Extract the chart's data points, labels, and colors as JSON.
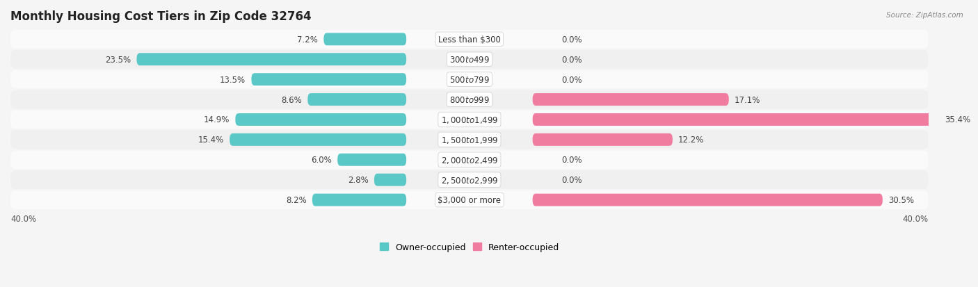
{
  "title": "Monthly Housing Cost Tiers in Zip Code 32764",
  "source": "Source: ZipAtlas.com",
  "categories": [
    "Less than $300",
    "$300 to $499",
    "$500 to $799",
    "$800 to $999",
    "$1,000 to $1,499",
    "$1,500 to $1,999",
    "$2,000 to $2,499",
    "$2,500 to $2,999",
    "$3,000 or more"
  ],
  "owner_values": [
    7.2,
    23.5,
    13.5,
    8.6,
    14.9,
    15.4,
    6.0,
    2.8,
    8.2
  ],
  "renter_values": [
    0.0,
    0.0,
    0.0,
    17.1,
    35.4,
    12.2,
    0.0,
    0.0,
    30.5
  ],
  "owner_color": "#5bc8c8",
  "renter_color": "#f07ca0",
  "axis_max": 40.0,
  "row_bg_odd": "#f0f0f0",
  "row_bg_even": "#fafafa",
  "background_color": "#f5f5f5",
  "title_fontsize": 12,
  "label_fontsize": 8.5,
  "tick_fontsize": 8.5,
  "legend_fontsize": 9
}
